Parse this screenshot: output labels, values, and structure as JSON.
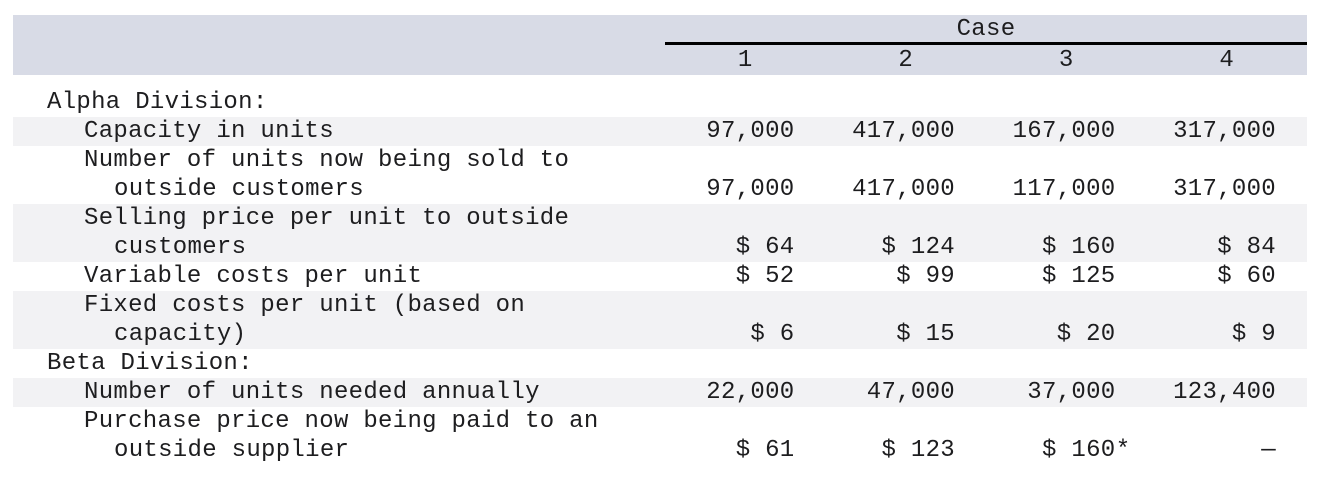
{
  "table": {
    "header": {
      "case_label": "Case",
      "columns": [
        "1",
        "2",
        "3",
        "4"
      ]
    },
    "rows": [
      {
        "type": "section",
        "label": "Alpha Division:",
        "shaded": false,
        "values": [
          "",
          "",
          "",
          ""
        ]
      },
      {
        "type": "item",
        "lines": [
          "Capacity in units"
        ],
        "shaded": true,
        "values": [
          "97,000",
          "417,000",
          "167,000",
          "317,000"
        ]
      },
      {
        "type": "item",
        "lines": [
          "Number of units now being sold to",
          "outside customers"
        ],
        "shaded": false,
        "values": [
          "97,000",
          "417,000",
          "117,000",
          "317,000"
        ]
      },
      {
        "type": "item",
        "lines": [
          "Selling price per unit to outside",
          "customers"
        ],
        "shaded": true,
        "values": [
          "$ 64",
          "$ 124",
          "$ 160",
          "$ 84"
        ]
      },
      {
        "type": "item",
        "lines": [
          "Variable costs per unit"
        ],
        "shaded": false,
        "values": [
          "$ 52",
          "$ 99",
          "$ 125",
          "$ 60"
        ]
      },
      {
        "type": "item",
        "lines": [
          "Fixed costs per unit (based on",
          "capacity)"
        ],
        "shaded": true,
        "values": [
          "$ 6",
          "$ 15",
          "$ 20",
          "$ 9"
        ]
      },
      {
        "type": "section",
        "label": "Beta Division:",
        "shaded": false,
        "values": [
          "",
          "",
          "",
          ""
        ]
      },
      {
        "type": "item",
        "lines": [
          "Number of units needed annually"
        ],
        "shaded": true,
        "values": [
          "22,000",
          "47,000",
          "37,000",
          "123,400"
        ]
      },
      {
        "type": "item",
        "lines": [
          "Purchase price now being paid to an",
          "outside supplier"
        ],
        "shaded": false,
        "values": [
          "$ 61",
          "$ 123",
          "$ 160*",
          "—"
        ]
      }
    ],
    "colors": {
      "header_band": "#d8dbe6",
      "row_stripe": "#f2f2f4",
      "text": "#1d1d1f",
      "rule": "#000000"
    }
  }
}
